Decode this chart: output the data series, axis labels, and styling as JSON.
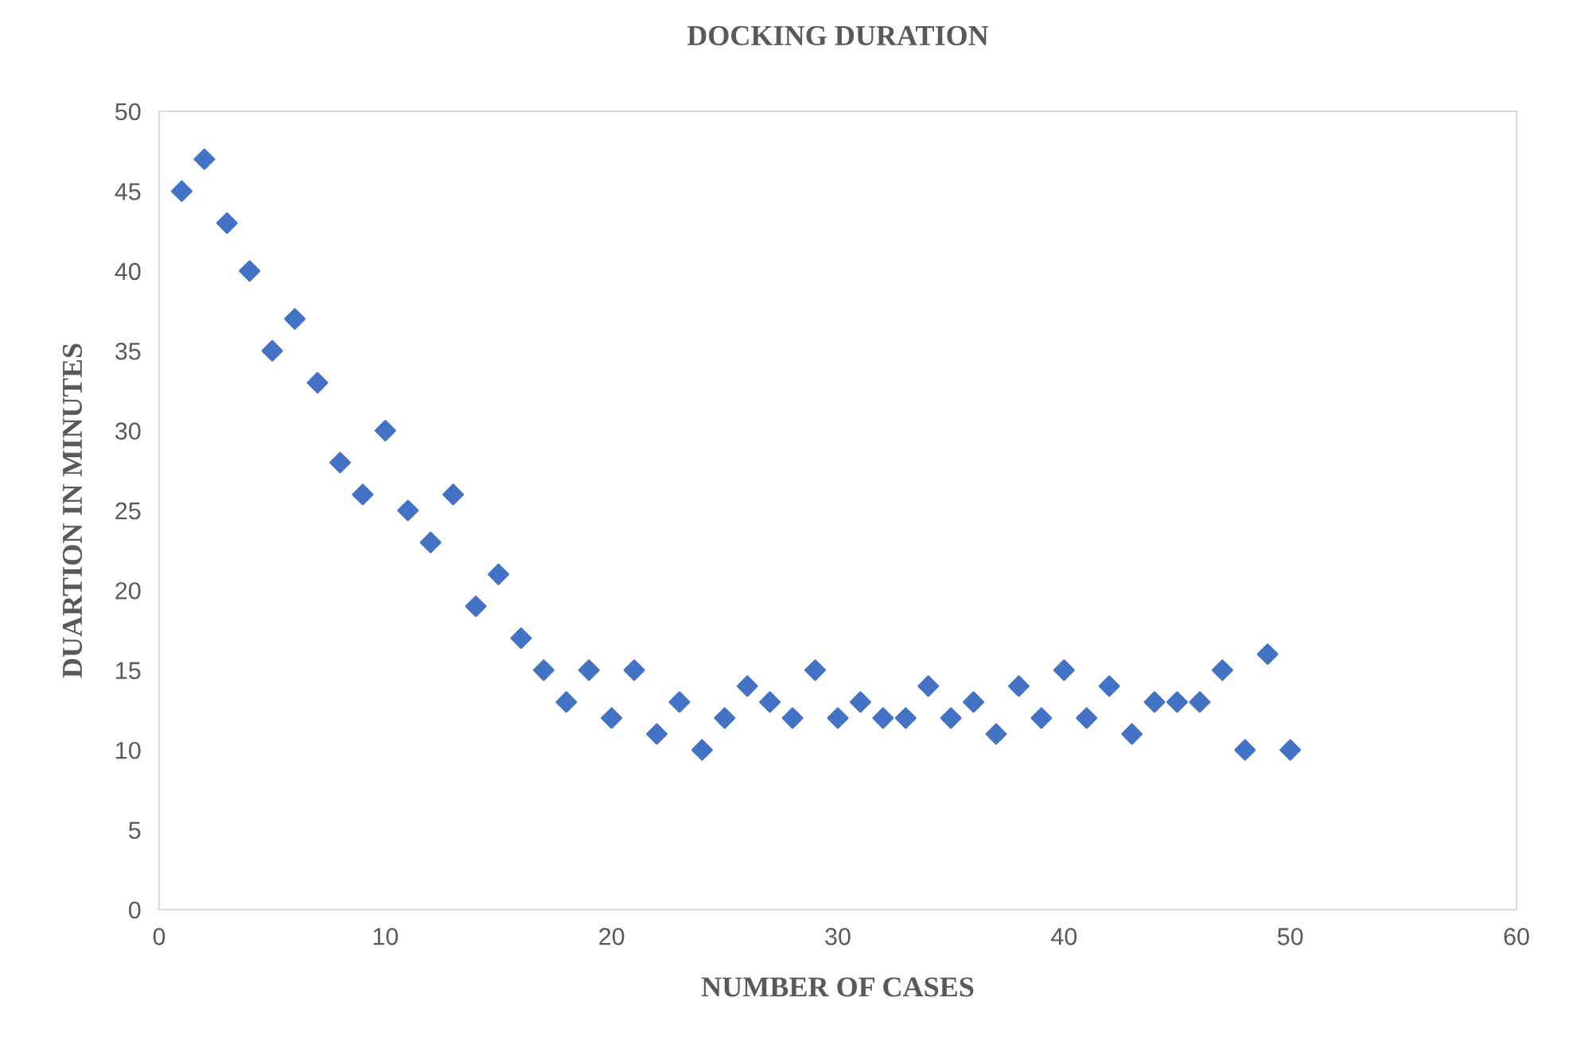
{
  "chart_data": {
    "type": "scatter",
    "title": "DOCKING DURATION",
    "xlabel": "NUMBER OF CASES",
    "ylabel": "DUARTION IN MINUTES",
    "x": [
      1,
      2,
      3,
      4,
      5,
      6,
      7,
      8,
      9,
      10,
      11,
      12,
      13,
      14,
      15,
      16,
      17,
      18,
      19,
      20,
      21,
      22,
      23,
      24,
      25,
      26,
      27,
      28,
      29,
      30,
      31,
      32,
      33,
      34,
      35,
      36,
      37,
      38,
      39,
      40,
      41,
      42,
      43,
      44,
      45,
      46,
      47,
      48,
      49,
      50
    ],
    "series": [
      {
        "color": "#4472c4",
        "values": [
          45,
          47,
          43,
          40,
          35,
          37,
          33,
          28,
          26,
          30,
          25,
          23,
          26,
          19,
          21,
          17,
          15,
          13,
          15,
          12,
          15,
          11,
          13,
          10,
          12,
          14,
          13,
          12,
          15,
          12,
          13,
          12,
          12,
          14,
          12,
          13,
          11,
          14,
          12,
          15,
          12,
          14,
          11,
          13,
          13,
          13,
          15,
          10,
          16,
          10
        ]
      }
    ],
    "xlim": [
      0,
      60
    ],
    "xticks": [
      0,
      10,
      20,
      30,
      40,
      50,
      60
    ],
    "ylim": [
      0,
      50
    ],
    "yticks": [
      0,
      5,
      10,
      15,
      20,
      25,
      30,
      35,
      40,
      45,
      50
    ],
    "marker": "diamond",
    "grid": false,
    "legend": false
  }
}
